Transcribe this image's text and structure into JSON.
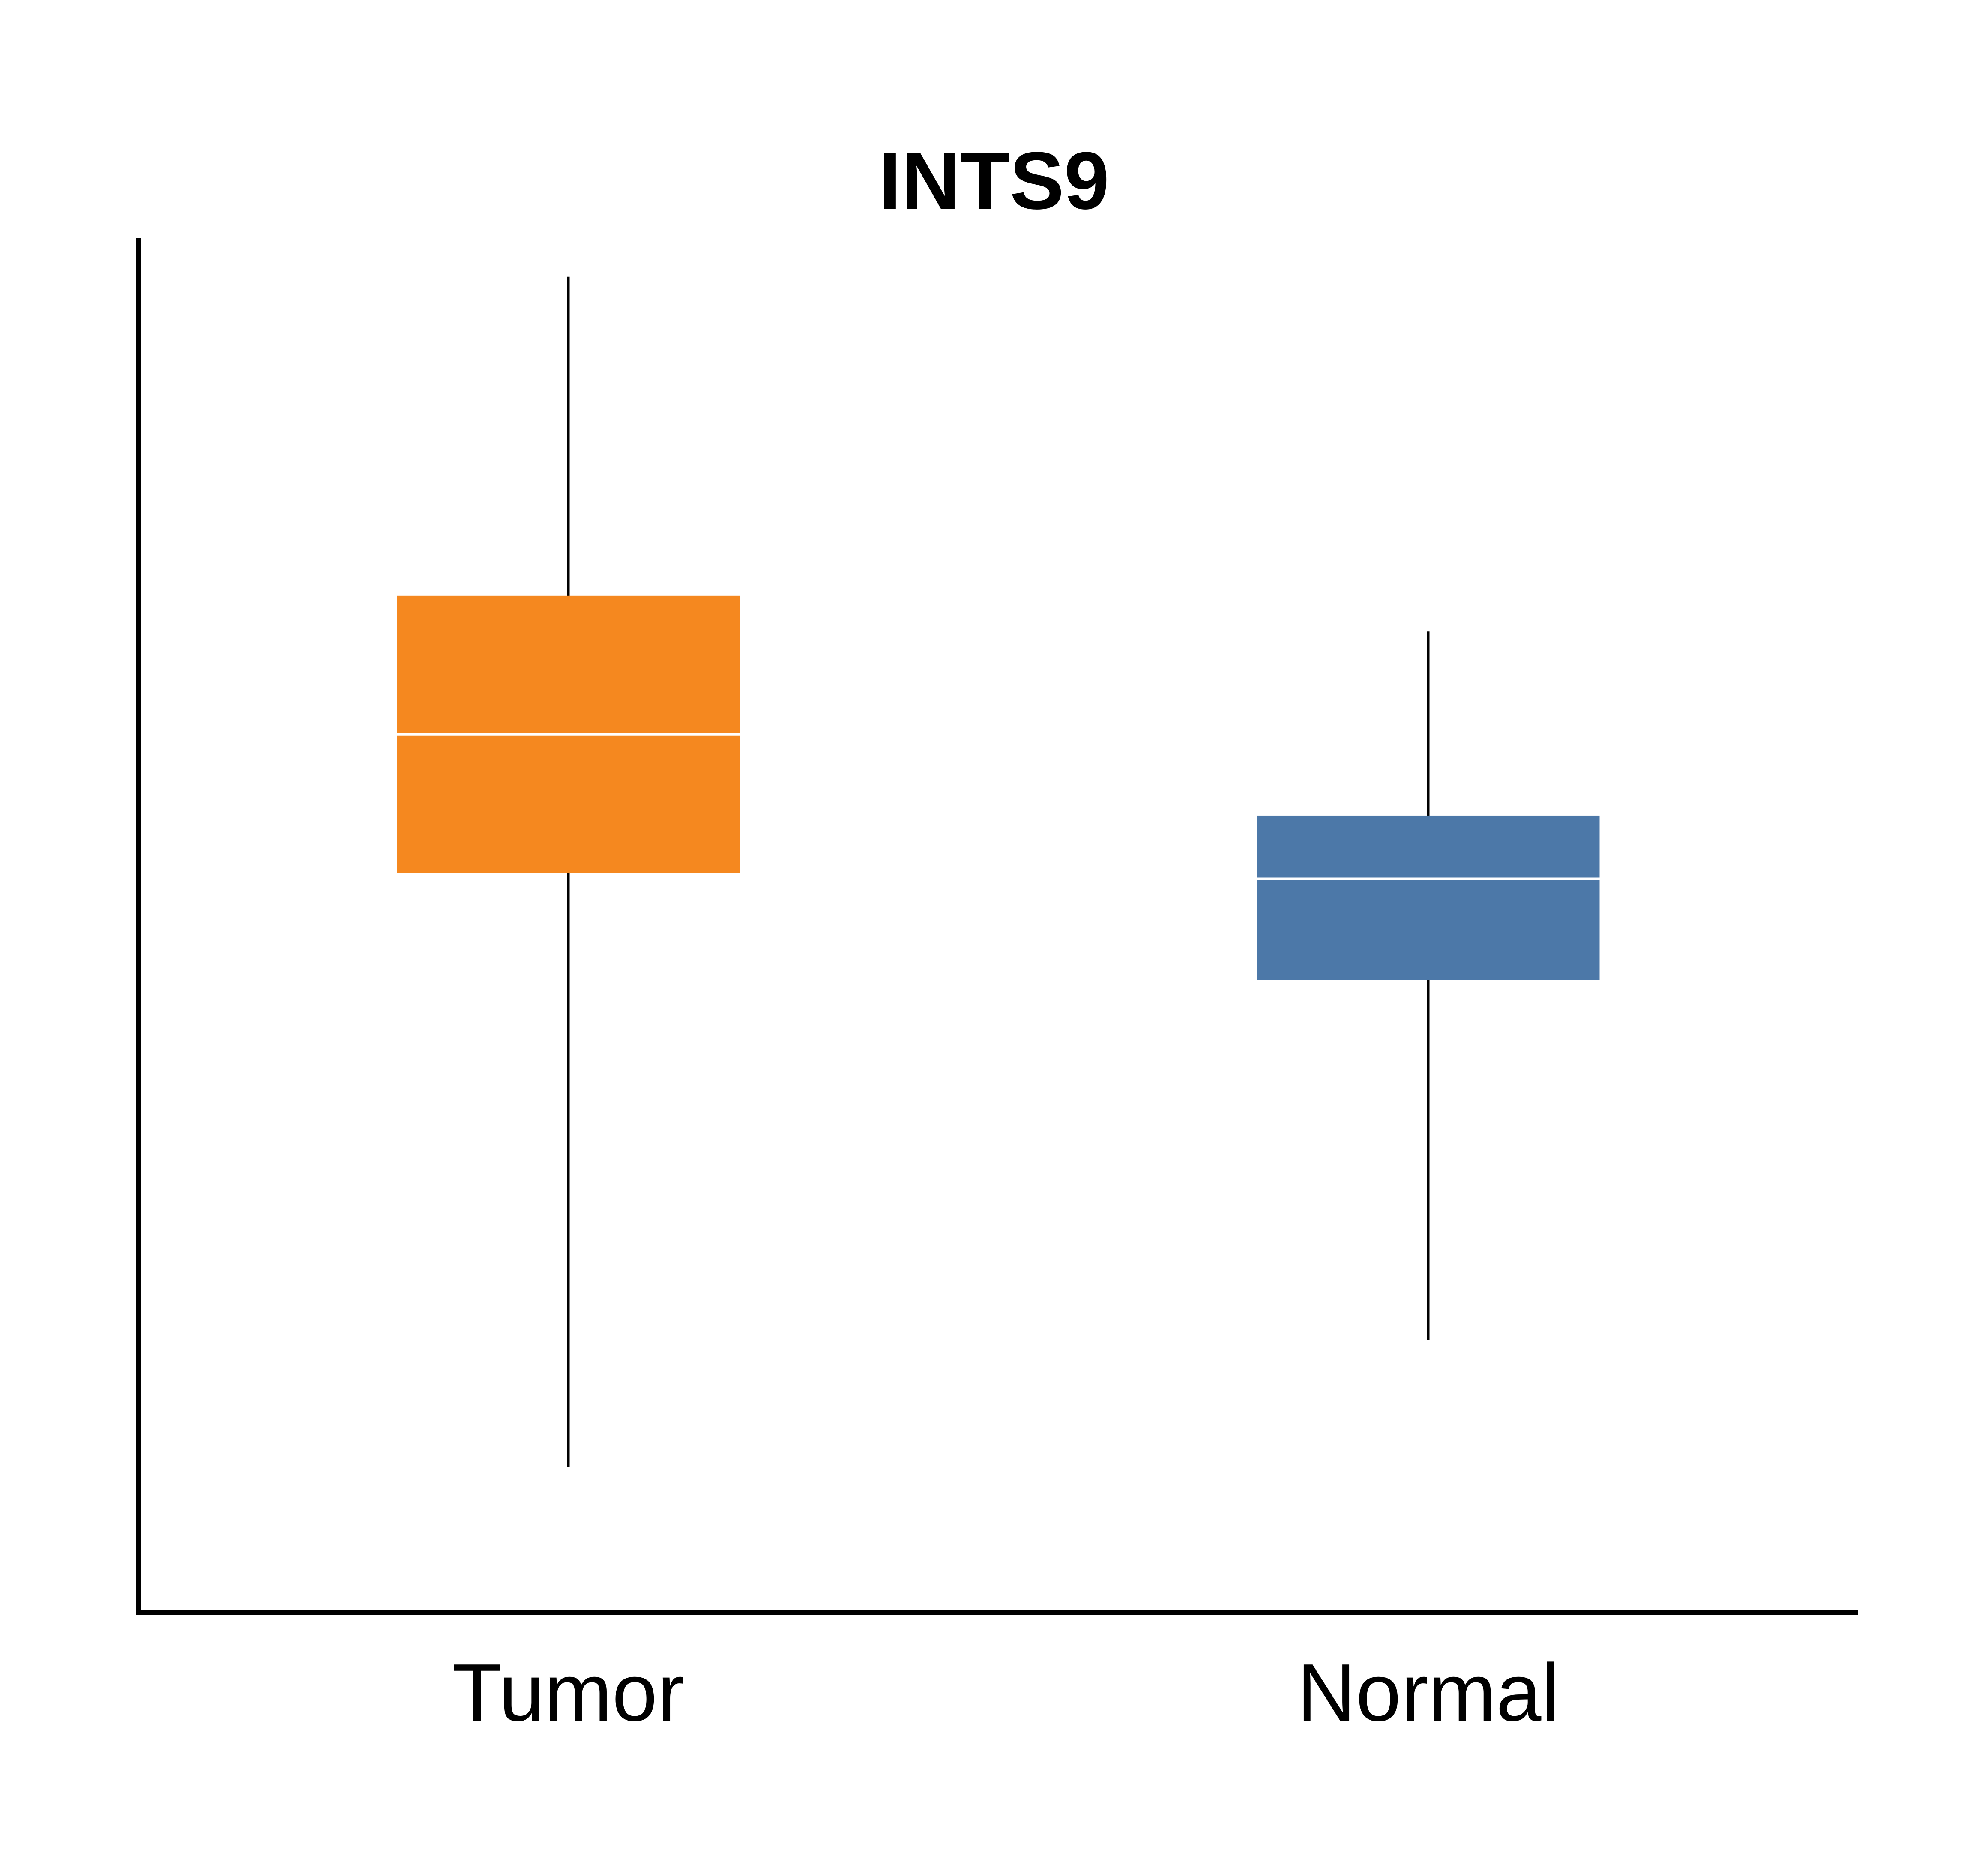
{
  "chart_data": {
    "type": "box",
    "title": "INTS9",
    "xlabel": "",
    "ylabel": "",
    "ylim": [
      0,
      100
    ],
    "grid": false,
    "legend": "none",
    "y_ticks_shown": false,
    "note_values": "relative, unlabeled y-axis; values in arbitrary 0-100 units read off the frame",
    "categories": [
      "Tumor",
      "Normal"
    ],
    "series": [
      {
        "category": "Tumor",
        "color": "#F5881F",
        "whisker_low": 10.6,
        "q1": 53.8,
        "median": 63.9,
        "q3": 74.0,
        "whisker_high": 97.2
      },
      {
        "category": "Normal",
        "color": "#4C78A8",
        "whisker_low": 19.8,
        "q1": 46.0,
        "median": 53.4,
        "q3": 58.0,
        "whisker_high": 71.4
      }
    ],
    "colors": {
      "axis": "#000000",
      "whisker": "#000000",
      "median": "#FFFFFF"
    }
  }
}
